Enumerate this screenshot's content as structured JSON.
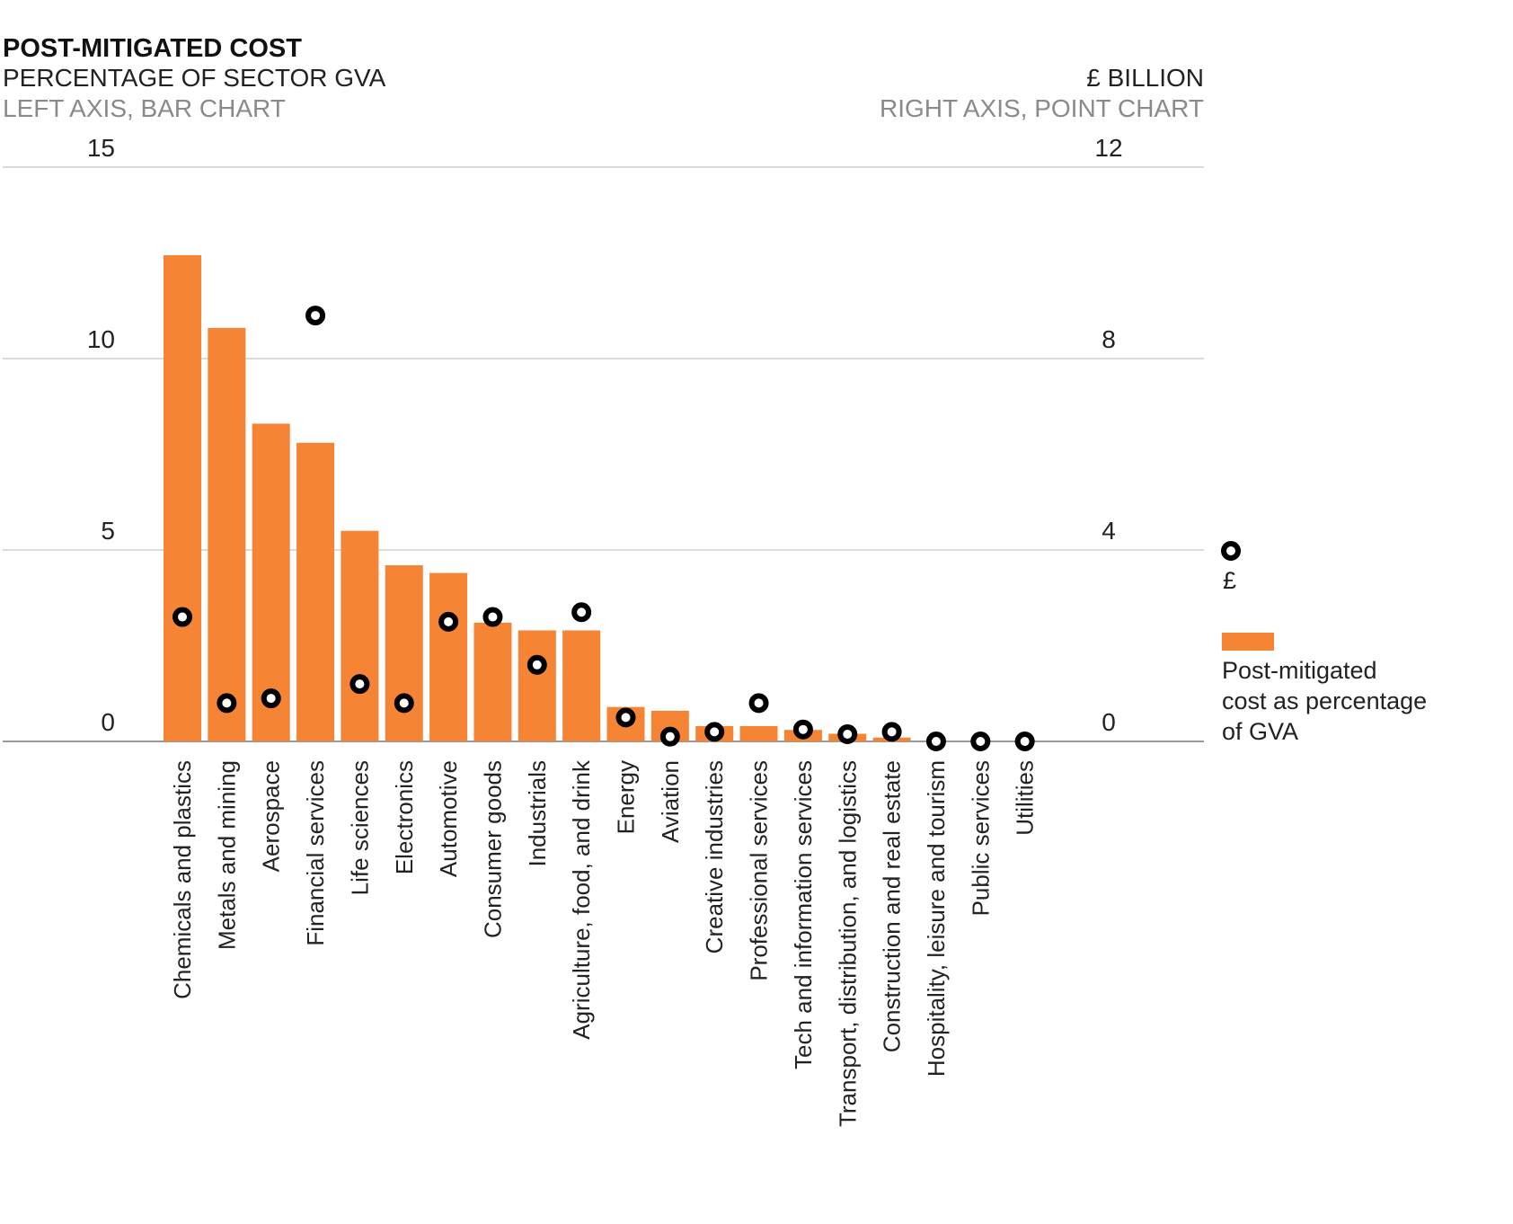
{
  "chart_data": {
    "type": "bar",
    "title": "POST-MITIGATED COST",
    "left_axis": {
      "label": "PERCENTAGE OF SECTOR GVA",
      "note": "LEFT AXIS, BAR CHART",
      "ylim": [
        0,
        15
      ],
      "ticks": [
        "0",
        "5",
        "10",
        "15"
      ]
    },
    "right_axis": {
      "label": "£ BILLION",
      "note": "RIGHT AXIS, POINT CHART",
      "ylim": [
        0,
        12
      ],
      "ticks": [
        "0",
        "4",
        "8",
        "12"
      ]
    },
    "grid": true,
    "categories": [
      "Chemicals and plastics",
      "Metals and mining",
      "Aerospace",
      "Financial services",
      "Life sciences",
      "Electronics",
      "Automotive",
      "Consumer goods",
      "Industrials",
      "Agriculture,  food, and drink",
      "Energy",
      "Aviation",
      "Creative industries",
      "Professional services",
      "Tech and information services",
      "Transport, distribution, and logistics",
      "Construction and real estate",
      "Hospitality, leisure and tourism",
      "Public services",
      "Utilities"
    ],
    "series": [
      {
        "name": "Post-mitigated cost as percentage of GVA",
        "type": "bar",
        "axis": "left",
        "color": "#F58535",
        "values": [
          12.7,
          10.8,
          8.3,
          7.8,
          5.5,
          4.6,
          4.4,
          3.1,
          2.9,
          2.9,
          0.9,
          0.8,
          0.4,
          0.4,
          0.3,
          0.2,
          0.1,
          0.0,
          0.0,
          0.0
        ]
      },
      {
        "name": "£",
        "type": "point",
        "axis": "right",
        "color": "#000000",
        "values": [
          2.6,
          0.8,
          0.9,
          8.9,
          1.2,
          0.8,
          2.5,
          2.6,
          1.6,
          2.7,
          0.5,
          0.1,
          0.2,
          0.8,
          0.25,
          0.15,
          0.2,
          0.0,
          0.0,
          0.0
        ]
      }
    ],
    "legend": {
      "position": "right",
      "items": [
        {
          "marker": "point",
          "label": "£"
        },
        {
          "marker": "bar",
          "label_lines": [
            "Post-mitigated",
            "cost as percentage",
            "of GVA"
          ]
        }
      ]
    }
  }
}
